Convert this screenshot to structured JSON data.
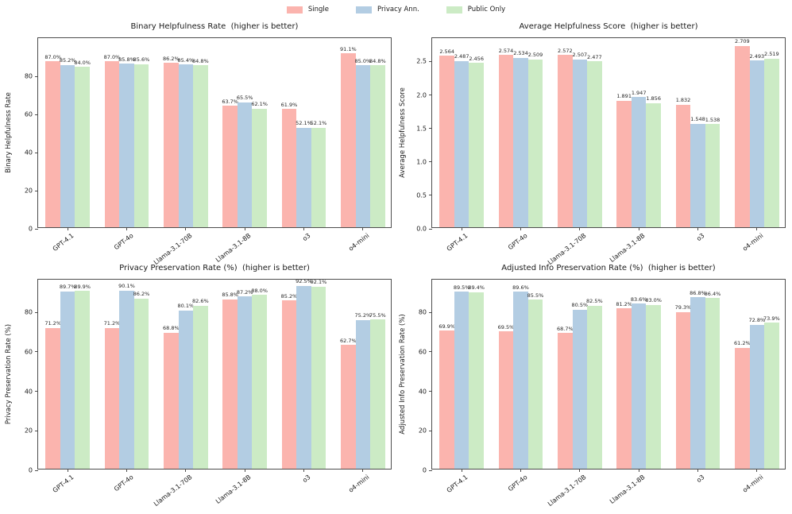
{
  "colors": {
    "single": "#fbb4ae",
    "privacy_ann": "#b3cde3",
    "public_only": "#ccebc5",
    "spine": "#4d4d4d"
  },
  "legend": {
    "items": [
      {
        "label": "Single"
      },
      {
        "label": "Privacy Ann."
      },
      {
        "label": "Public Only"
      }
    ]
  },
  "chart_data": [
    {
      "type": "bar",
      "title": "Binary Helpfulness Rate  (higher is better)",
      "xlabel": "",
      "ylabel": "Binary Helpfulness Rate",
      "ylim": [
        0,
        100
      ],
      "yticks": [
        0,
        20,
        40,
        60,
        80
      ],
      "ytick_labels": [
        "0",
        "20",
        "40",
        "60",
        "80"
      ],
      "grid": false,
      "legend_position": "upper center (shared)",
      "categories": [
        "GPT-4.1",
        "GPT-4o",
        "Llama-3.1-70B",
        "Llama-3.1-8B",
        "o3",
        "o4-mini"
      ],
      "series": [
        {
          "name": "Single",
          "color": "#fbb4ae",
          "values": [
            87.0,
            87.0,
            86.2,
            63.7,
            61.9,
            91.1
          ],
          "labels": [
            "87.0%",
            "87.0%",
            "86.2%",
            "63.7%",
            "61.9%",
            "91.1%"
          ]
        },
        {
          "name": "Privacy Ann.",
          "color": "#b3cde3",
          "values": [
            85.2,
            85.8,
            85.4,
            65.5,
            52.1,
            85.0
          ],
          "labels": [
            "85.2%",
            "85.8%",
            "85.4%",
            "65.5%",
            "52.1%",
            "85.0%"
          ]
        },
        {
          "name": "Public Only",
          "color": "#ccebc5",
          "values": [
            84.0,
            85.6,
            84.8,
            62.1,
            52.1,
            84.8
          ],
          "labels": [
            "84.0%",
            "85.6%",
            "84.8%",
            "62.1%",
            "52.1%",
            "84.8%"
          ]
        }
      ]
    },
    {
      "type": "bar",
      "title": "Average Helpfulness Score  (higher is better)",
      "xlabel": "",
      "ylabel": "Average Helpfulness Score",
      "ylim": [
        0,
        2.85
      ],
      "yticks": [
        0,
        0.5,
        1.0,
        1.5,
        2.0,
        2.5
      ],
      "ytick_labels": [
        "0.0",
        "0.5",
        "1.0",
        "1.5",
        "2.0",
        "2.5"
      ],
      "grid": false,
      "legend_position": "upper center (shared)",
      "categories": [
        "GPT-4.1",
        "GPT-4o",
        "Llama-3.1-70B",
        "Llama-3.1-8B",
        "o3",
        "o4-mini"
      ],
      "series": [
        {
          "name": "Single",
          "color": "#fbb4ae",
          "values": [
            2.564,
            2.574,
            2.572,
            1.891,
            1.832,
            2.709
          ],
          "labels": [
            "2.564",
            "2.574",
            "2.572",
            "1.891",
            "1.832",
            "2.709"
          ]
        },
        {
          "name": "Privacy Ann.",
          "color": "#b3cde3",
          "values": [
            2.487,
            2.534,
            2.507,
            1.947,
            1.548,
            2.493
          ],
          "labels": [
            "2.487",
            "2.534",
            "2.507",
            "1.947",
            "1.548",
            "2.493"
          ]
        },
        {
          "name": "Public Only",
          "color": "#ccebc5",
          "values": [
            2.456,
            2.509,
            2.477,
            1.856,
            1.538,
            2.519
          ],
          "labels": [
            "2.456",
            "2.509",
            "2.477",
            "1.856",
            "1.538",
            "2.519"
          ]
        }
      ]
    },
    {
      "type": "bar",
      "title": "Privacy Preservation Rate (%)  (higher is better)",
      "xlabel": "",
      "ylabel": "Privacy Preservation Rate (%)",
      "ylim": [
        0,
        96.5
      ],
      "yticks": [
        0,
        20,
        40,
        60,
        80
      ],
      "ytick_labels": [
        "0",
        "20",
        "40",
        "60",
        "80"
      ],
      "grid": false,
      "legend_position": "upper center (shared)",
      "categories": [
        "GPT-4.1",
        "GPT-4o",
        "Llama-3.1-70B",
        "Llama-3.1-8B",
        "o3",
        "o4-mini"
      ],
      "series": [
        {
          "name": "Single",
          "color": "#fbb4ae",
          "values": [
            71.2,
            71.2,
            68.8,
            85.8,
            85.2,
            62.7
          ],
          "labels": [
            "71.2%",
            "71.2%",
            "68.8%",
            "85.8%",
            "85.2%",
            "62.7%"
          ]
        },
        {
          "name": "Privacy Ann.",
          "color": "#b3cde3",
          "values": [
            89.7,
            90.1,
            80.1,
            87.2,
            92.5,
            75.2
          ],
          "labels": [
            "89.7%",
            "90.1%",
            "80.1%",
            "87.2%",
            "92.5%",
            "75.2%"
          ]
        },
        {
          "name": "Public Only",
          "color": "#ccebc5",
          "values": [
            89.9,
            86.2,
            82.6,
            88.0,
            92.1,
            75.5
          ],
          "labels": [
            "89.9%",
            "86.2%",
            "82.6%",
            "88.0%",
            "92.1%",
            "75.5%"
          ]
        }
      ]
    },
    {
      "type": "bar",
      "title": "Adjusted Info Preservation Rate (%)  (higher is better)",
      "xlabel": "",
      "ylabel": "Adjusted Info Preservation Rate (%)",
      "ylim": [
        0,
        96.5
      ],
      "yticks": [
        0,
        20,
        40,
        60,
        80
      ],
      "ytick_labels": [
        "0",
        "20",
        "40",
        "60",
        "80"
      ],
      "grid": false,
      "legend_position": "upper center (shared)",
      "categories": [
        "GPT-4.1",
        "GPT-4o",
        "Llama-3.1-70B",
        "Llama-3.1-8B",
        "o3",
        "o4-mini"
      ],
      "series": [
        {
          "name": "Single",
          "color": "#fbb4ae",
          "values": [
            69.9,
            69.5,
            68.7,
            81.2,
            79.3,
            61.2
          ],
          "labels": [
            "69.9%",
            "69.5%",
            "68.7%",
            "81.2%",
            "79.3%",
            "61.2%"
          ]
        },
        {
          "name": "Privacy Ann.",
          "color": "#b3cde3",
          "values": [
            89.5,
            89.6,
            80.5,
            83.6,
            86.8,
            72.8
          ],
          "labels": [
            "89.5%",
            "89.6%",
            "80.5%",
            "83.6%",
            "86.8%",
            "72.8%"
          ]
        },
        {
          "name": "Public Only",
          "color": "#ccebc5",
          "values": [
            89.4,
            85.5,
            82.5,
            83.0,
            86.4,
            73.9
          ],
          "labels": [
            "89.4%",
            "85.5%",
            "82.5%",
            "83.0%",
            "86.4%",
            "73.9%"
          ]
        }
      ]
    }
  ]
}
